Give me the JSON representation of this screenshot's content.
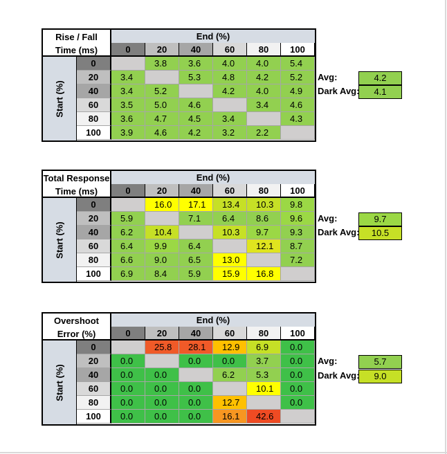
{
  "colors": {
    "header": "#d6dce4",
    "diag": "#d0cece",
    "hdr_0": "#7f7f7f",
    "hdr_20": "#bfbfbf",
    "hdr_40": "#a6a6a6",
    "hdr_60": "#d9d9d9",
    "hdr_80": "#f2f2f2",
    "hdr_100": "#ffffff"
  },
  "tables": [
    {
      "title_line1": "Rise / Fall",
      "title_line2": "Time (ms)",
      "end_label": "End (%)",
      "start_label": "Start (%)",
      "col_headers": [
        "0",
        "20",
        "40",
        "60",
        "80",
        "100"
      ],
      "row_headers": [
        "0",
        "20",
        "40",
        "60",
        "80",
        "100"
      ],
      "rows": [
        [
          null,
          "3.8",
          "3.6",
          "4.0",
          "4.0",
          "5.4"
        ],
        [
          "3.4",
          null,
          "5.3",
          "4.8",
          "4.2",
          "5.2"
        ],
        [
          "3.4",
          "5.2",
          null,
          "4.2",
          "4.0",
          "4.9"
        ],
        [
          "3.5",
          "5.0",
          "4.6",
          null,
          "3.4",
          "4.6"
        ],
        [
          "3.6",
          "4.7",
          "4.5",
          "3.4",
          null,
          "4.3"
        ],
        [
          "3.9",
          "4.6",
          "4.2",
          "3.2",
          "2.2",
          null
        ]
      ],
      "colors": [
        [
          null,
          "#92d050",
          "#92d050",
          "#92d050",
          "#92d050",
          "#92d050"
        ],
        [
          "#92d050",
          null,
          "#92d050",
          "#92d050",
          "#92d050",
          "#92d050"
        ],
        [
          "#92d050",
          "#92d050",
          null,
          "#92d050",
          "#92d050",
          "#92d050"
        ],
        [
          "#92d050",
          "#92d050",
          "#92d050",
          null,
          "#92d050",
          "#92d050"
        ],
        [
          "#92d050",
          "#92d050",
          "#92d050",
          "#92d050",
          null,
          "#92d050"
        ],
        [
          "#92d050",
          "#92d050",
          "#92d050",
          "#92d050",
          "#92d050",
          null
        ]
      ],
      "avg_label": "Avg:",
      "avg_value": "4.2",
      "avg_color": "#92d050",
      "dark_avg_label": "Dark Avg:",
      "dark_avg_value": "4.1",
      "dark_avg_color": "#92d050"
    },
    {
      "title_line1": "Total Response",
      "title_line2": "Time (ms)",
      "end_label": "End (%)",
      "start_label": "Start (%)",
      "col_headers": [
        "0",
        "20",
        "40",
        "60",
        "80",
        "100"
      ],
      "row_headers": [
        "0",
        "20",
        "40",
        "60",
        "80",
        "100"
      ],
      "rows": [
        [
          null,
          "16.0",
          "17.1",
          "13.4",
          "10.3",
          "9.8"
        ],
        [
          "5.9",
          null,
          "7.1",
          "6.4",
          "8.6",
          "9.6"
        ],
        [
          "6.2",
          "10.4",
          null,
          "10.3",
          "9.7",
          "9.3"
        ],
        [
          "6.4",
          "9.9",
          "6.4",
          null,
          "12.1",
          "8.7"
        ],
        [
          "6.6",
          "9.0",
          "6.5",
          "13.0",
          null,
          "7.2"
        ],
        [
          "6.9",
          "8.4",
          "5.9",
          "15.9",
          "16.8",
          null
        ]
      ],
      "colors": [
        [
          null,
          "#ffff00",
          "#ffff00",
          "#c6e026",
          "#c6e026",
          "#9bd845"
        ],
        [
          "#92d050",
          null,
          "#92d050",
          "#92d050",
          "#92d050",
          "#9bd845"
        ],
        [
          "#92d050",
          "#c6e026",
          null,
          "#c6e026",
          "#9bd845",
          "#92d050"
        ],
        [
          "#92d050",
          "#9bd845",
          "#92d050",
          null,
          "#dfe41f",
          "#92d050"
        ],
        [
          "#92d050",
          "#92d050",
          "#92d050",
          "#ffff00",
          null,
          "#92d050"
        ],
        [
          "#92d050",
          "#92d050",
          "#92d050",
          "#ffff00",
          "#ffff00",
          null
        ]
      ],
      "avg_label": "Avg:",
      "avg_value": "9.7",
      "avg_color": "#9bd845",
      "dark_avg_label": "Dark Avg:",
      "dark_avg_value": "10.5",
      "dark_avg_color": "#c6e026"
    },
    {
      "title_line1": "Overshoot",
      "title_line2": "Error (%)",
      "end_label": "End (%)",
      "start_label": "Start (%)",
      "col_headers": [
        "0",
        "20",
        "40",
        "60",
        "80",
        "100"
      ],
      "row_headers": [
        "0",
        "20",
        "40",
        "60",
        "80",
        "100"
      ],
      "rows": [
        [
          null,
          "25.8",
          "28.1",
          "12.9",
          "6.9",
          "0.0"
        ],
        [
          "0.0",
          null,
          "0.0",
          "0.0",
          "3.7",
          "0.0"
        ],
        [
          "0.0",
          "0.0",
          null,
          "6.2",
          "5.3",
          "0.0"
        ],
        [
          "0.0",
          "0.0",
          "0.0",
          null,
          "10.1",
          "0.0"
        ],
        [
          "0.0",
          "0.0",
          "0.0",
          "12.7",
          null,
          "0.0"
        ],
        [
          "0.0",
          "0.0",
          "0.0",
          "16.1",
          "42.6",
          null
        ]
      ],
      "colors": [
        [
          null,
          "#f05a28",
          "#f05a28",
          "#ffc000",
          "#c6e026",
          "#3fc048"
        ],
        [
          "#3fc048",
          null,
          "#3fc048",
          "#3fc048",
          "#92d050",
          "#3fc048"
        ],
        [
          "#3fc048",
          "#3fc048",
          null,
          "#92d050",
          "#92d050",
          "#3fc048"
        ],
        [
          "#3fc048",
          "#3fc048",
          "#3fc048",
          null,
          "#ffff00",
          "#3fc048"
        ],
        [
          "#3fc048",
          "#3fc048",
          "#3fc048",
          "#ffc000",
          null,
          "#3fc048"
        ],
        [
          "#3fc048",
          "#3fc048",
          "#3fc048",
          "#f79621",
          "#ef4b23",
          null
        ]
      ],
      "avg_label": "Avg:",
      "avg_value": "5.7",
      "avg_color": "#92d050",
      "dark_avg_label": "Dark Avg:",
      "dark_avg_value": "9.0",
      "dark_avg_color": "#c6e026"
    }
  ]
}
